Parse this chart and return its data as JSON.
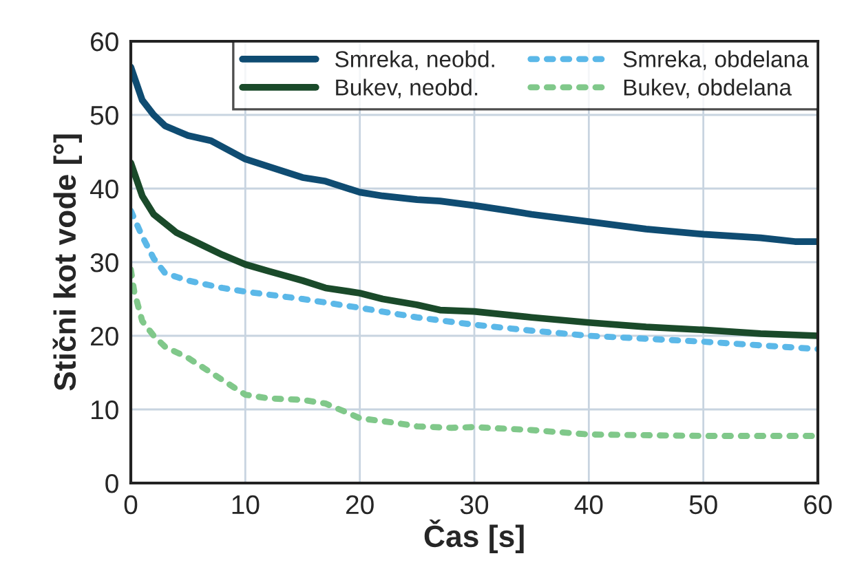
{
  "chart_data": {
    "type": "line",
    "xlabel": "Čas [s]",
    "ylabel": "Stični kot vode [°]",
    "xlim": [
      0,
      60
    ],
    "ylim": [
      0,
      60
    ],
    "xticks": [
      0,
      10,
      20,
      30,
      40,
      50,
      60
    ],
    "yticks": [
      0,
      10,
      20,
      30,
      40,
      50,
      60
    ],
    "grid": true,
    "legend": "top",
    "marker": "none",
    "series": [
      {
        "name": "Smreka, neobd.",
        "color": "#0f4c72",
        "line_style": "solid",
        "x": [
          0,
          1,
          2,
          3,
          5,
          7,
          10,
          12,
          15,
          17,
          20,
          22,
          25,
          27,
          30,
          33,
          35,
          40,
          45,
          50,
          55,
          58,
          60
        ],
        "values": [
          56.5,
          52,
          50,
          48.5,
          47.2,
          46.5,
          44,
          43,
          41.5,
          41,
          39.5,
          39,
          38.5,
          38.3,
          37.7,
          37,
          36.5,
          35.5,
          34.5,
          33.8,
          33.3,
          32.8,
          32.8
        ]
      },
      {
        "name": "Bukev, neobd.",
        "color": "#1a4a2a",
        "line_style": "solid",
        "x": [
          0,
          1,
          2,
          4,
          6,
          8,
          10,
          12,
          15,
          17,
          20,
          22,
          25,
          27,
          30,
          35,
          40,
          45,
          50,
          55,
          60
        ],
        "values": [
          43.5,
          39,
          36.5,
          34,
          32.5,
          31,
          29.7,
          28.8,
          27.5,
          26.5,
          25.8,
          25,
          24.2,
          23.5,
          23.3,
          22.5,
          21.8,
          21.2,
          20.8,
          20.3,
          20
        ]
      },
      {
        "name": "Smreka, obdelana",
        "color": "#5bb8e8",
        "line_style": "dotted",
        "x": [
          0,
          1,
          2,
          3,
          5,
          8,
          10,
          15,
          20,
          25,
          30,
          35,
          40,
          45,
          50,
          55,
          60
        ],
        "values": [
          37,
          33.5,
          30.5,
          28.5,
          27.5,
          26.5,
          26,
          25,
          23.8,
          22.5,
          21.5,
          20.7,
          20,
          19.6,
          19.2,
          18.7,
          18.2
        ]
      },
      {
        "name": "Bukev, obdelana",
        "color": "#80c88a",
        "line_style": "dotted",
        "x": [
          0,
          0.3,
          1,
          2,
          3,
          5,
          7,
          9,
          10,
          12,
          15,
          17,
          19,
          20,
          23,
          25,
          28,
          30,
          35,
          40,
          50,
          60
        ],
        "values": [
          29,
          26,
          22,
          20,
          18.5,
          17,
          15,
          13,
          12,
          11.5,
          11.3,
          10.8,
          9.5,
          8.8,
          8.2,
          7.7,
          7.5,
          7.6,
          7.2,
          6.6,
          6.4,
          6.4
        ]
      }
    ]
  }
}
